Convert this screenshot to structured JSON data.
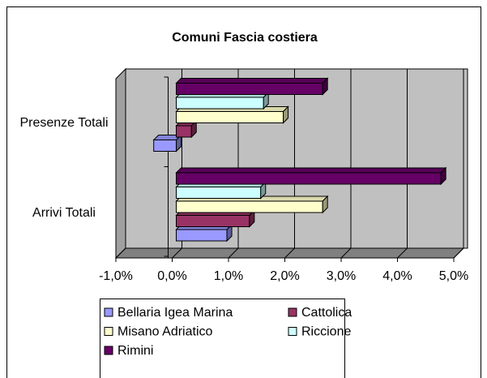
{
  "chart_data": {
    "type": "bar3d",
    "orientation": "horizontal",
    "title": "Comuni Fascia costiera",
    "categories": [
      "Presenze Totali",
      "Arrivi Totali"
    ],
    "series": [
      {
        "name": "Bellaria Igea Marina",
        "color": "#9999ff",
        "values": [
          -0.4,
          0.9
        ]
      },
      {
        "name": "Cattolica",
        "color": "#993366",
        "values": [
          0.27,
          1.3
        ]
      },
      {
        "name": "Misano Adriatico",
        "color": "#ffffcc",
        "values": [
          1.9,
          2.6
        ]
      },
      {
        "name": "Riccione",
        "color": "#ccffff",
        "values": [
          1.55,
          1.5
        ]
      },
      {
        "name": "Rimini",
        "color": "#660066",
        "values": [
          2.6,
          4.7
        ]
      }
    ],
    "xlim": [
      -1,
      5
    ],
    "xticks": [
      {
        "value": -1,
        "label": "-1,0%"
      },
      {
        "value": 0,
        "label": "0,0%"
      },
      {
        "value": 1,
        "label": "1,0%"
      },
      {
        "value": 2,
        "label": "2,0%"
      },
      {
        "value": 3,
        "label": "3,0%"
      },
      {
        "value": 4,
        "label": "4,0%"
      },
      {
        "value": 5,
        "label": "5,0%"
      }
    ],
    "grid": true,
    "legend": "bottom"
  }
}
